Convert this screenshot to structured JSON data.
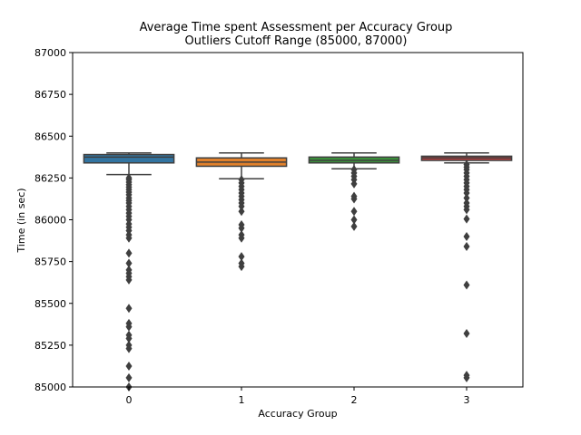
{
  "chart_data": {
    "type": "box",
    "title": "Average Time spent Assessment per Accuracy Group",
    "subtitle": "Outliers Cutoff Range (85000, 87000)",
    "xlabel": "Accuracy Group",
    "ylabel": "Time (in sec)",
    "ylim": [
      85000,
      87000
    ],
    "yticks": [
      85000,
      85250,
      85500,
      85750,
      86000,
      86250,
      86500,
      86750,
      87000
    ],
    "categories": [
      "0",
      "1",
      "2",
      "3"
    ],
    "grid": false,
    "colors": {
      "boxes": [
        "#3274a1",
        "#e1812c",
        "#3a923a",
        "#c03d3e"
      ],
      "lines": "#3f3f3f",
      "outliers": "#3f3f3f"
    },
    "groups": [
      {
        "category": "0",
        "whisker_low": 86270,
        "q1": 86340,
        "median": 86375,
        "q3": 86390,
        "whisker_high": 86400,
        "outliers": [
          86250,
          86240,
          86225,
          86210,
          86195,
          86180,
          86165,
          86150,
          86130,
          86115,
          86100,
          86080,
          86060,
          86040,
          86020,
          86000,
          85975,
          85955,
          85935,
          85910,
          85890,
          85800,
          85740,
          85700,
          85680,
          85660,
          85640,
          85470,
          85380,
          85360,
          85310,
          85290,
          85250,
          85230,
          85125,
          85055,
          85000
        ]
      },
      {
        "category": "1",
        "whisker_low": 86245,
        "q1": 86320,
        "median": 86345,
        "q3": 86370,
        "whisker_high": 86400,
        "outliers": [
          86240,
          86220,
          86200,
          86180,
          86160,
          86140,
          86120,
          86100,
          86080,
          86050,
          85970,
          85950,
          85910,
          85890,
          85780,
          85740,
          85720
        ]
      },
      {
        "category": "2",
        "whisker_low": 86305,
        "q1": 86340,
        "median": 86355,
        "q3": 86375,
        "whisker_high": 86400,
        "outliers": [
          86300,
          86280,
          86260,
          86240,
          86215,
          86140,
          86125,
          86050,
          86000,
          85960
        ]
      },
      {
        "category": "3",
        "whisker_low": 86340,
        "q1": 86355,
        "median": 86370,
        "q3": 86380,
        "whisker_high": 86400,
        "outliers": [
          86330,
          86315,
          86300,
          86280,
          86260,
          86240,
          86220,
          86200,
          86180,
          86160,
          86130,
          86100,
          86080,
          86060,
          86005,
          85900,
          85840,
          85610,
          85320,
          85070,
          85055
        ]
      }
    ]
  }
}
